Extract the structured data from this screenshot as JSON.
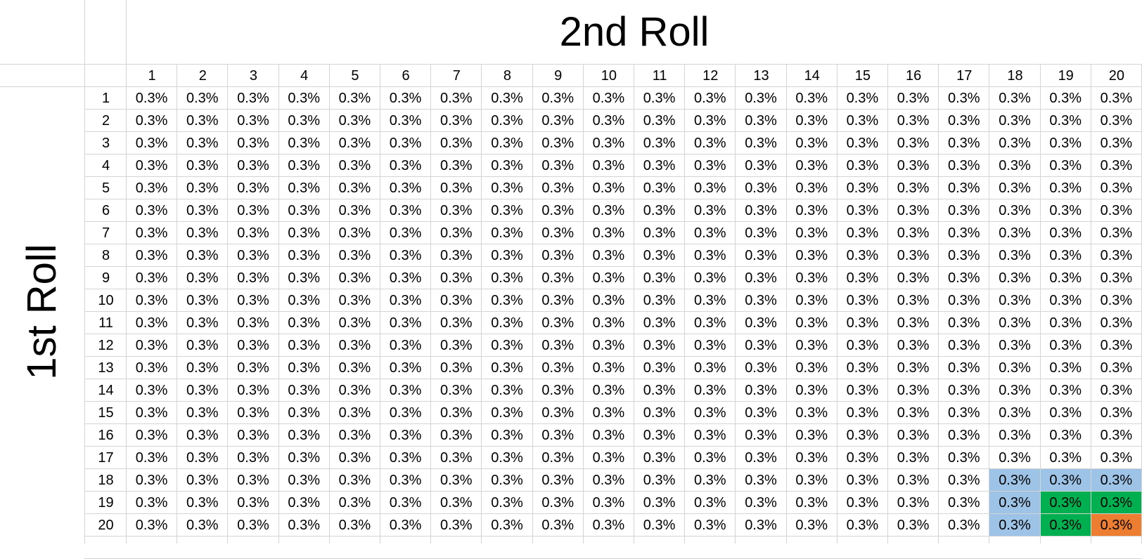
{
  "titles": {
    "columns_title": "2nd Roll",
    "rows_title": "1st Roll"
  },
  "column_headers": [
    "1",
    "2",
    "3",
    "4",
    "5",
    "6",
    "7",
    "8",
    "9",
    "10",
    "11",
    "12",
    "13",
    "14",
    "15",
    "16",
    "17",
    "18",
    "19",
    "20"
  ],
  "row_headers": [
    "1",
    "2",
    "3",
    "4",
    "5",
    "6",
    "7",
    "8",
    "9",
    "10",
    "11",
    "12",
    "13",
    "14",
    "15",
    "16",
    "17",
    "18",
    "19",
    "20"
  ],
  "cell_value": "0.3%",
  "highlight_colors": {
    "blue": "#9dc3e6",
    "green": "#00b050",
    "orange": "#ed7d31"
  },
  "highlights": [
    {
      "row": 18,
      "col": 18,
      "color": "blue"
    },
    {
      "row": 18,
      "col": 19,
      "color": "blue"
    },
    {
      "row": 18,
      "col": 20,
      "color": "blue"
    },
    {
      "row": 19,
      "col": 18,
      "color": "blue"
    },
    {
      "row": 20,
      "col": 18,
      "color": "blue"
    },
    {
      "row": 19,
      "col": 19,
      "color": "green"
    },
    {
      "row": 19,
      "col": 20,
      "color": "green"
    },
    {
      "row": 20,
      "col": 19,
      "color": "green"
    },
    {
      "row": 20,
      "col": 20,
      "color": "orange"
    }
  ]
}
